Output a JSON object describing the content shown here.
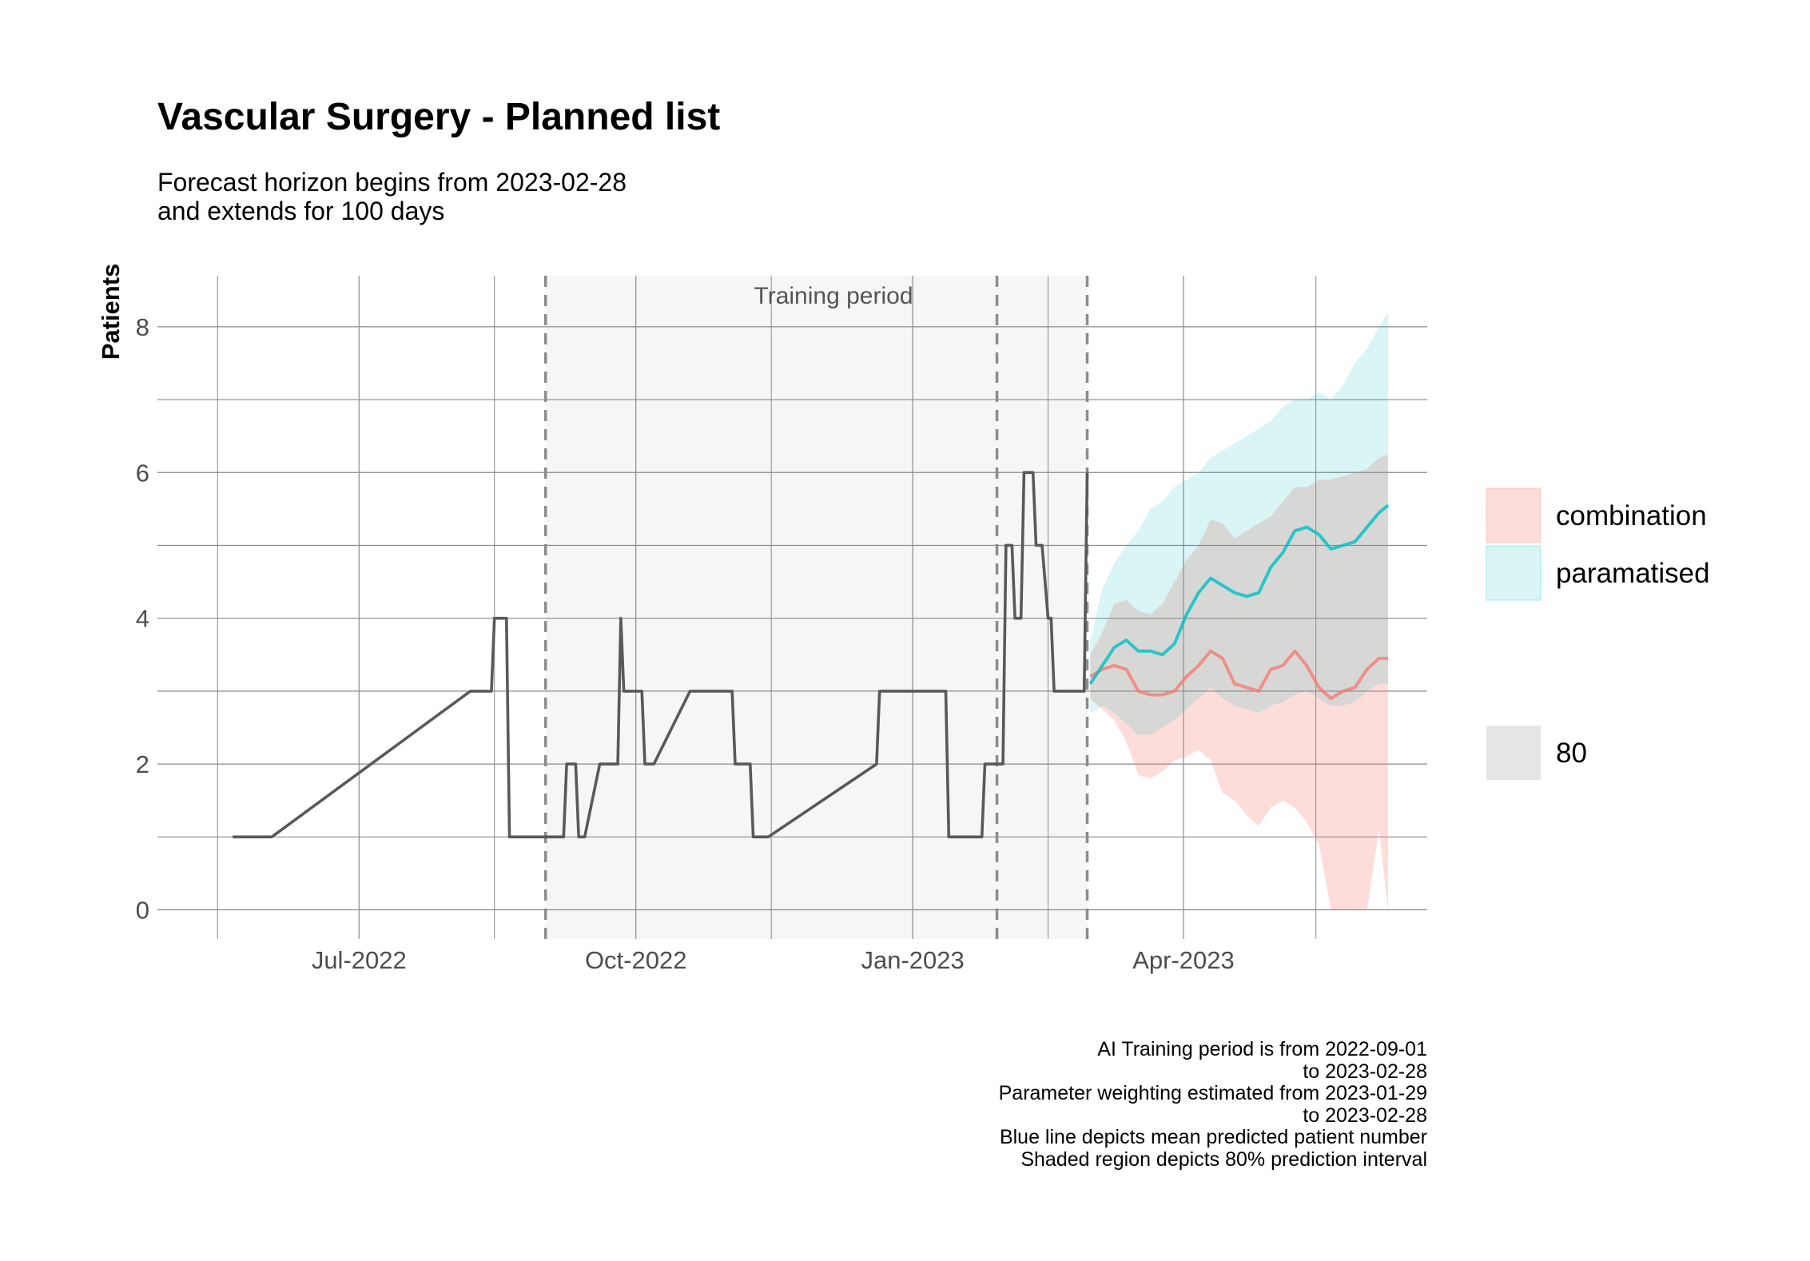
{
  "chart_data": {
    "type": "line",
    "title": "Vascular Surgery - Planned list",
    "subtitle": [
      "Forecast horizon begins from 2023-02-28",
      "and extends for 100 days"
    ],
    "ylabel": "Patients",
    "xlabel": "",
    "ylim": [
      -0.4,
      8.7
    ],
    "xlim": [
      "2022-04-25",
      "2023-06-21"
    ],
    "y_ticks": [
      0,
      2,
      4,
      6,
      8
    ],
    "x_ticks": [
      {
        "date": "2022-07-01",
        "label": "Jul-2022"
      },
      {
        "date": "2022-10-01",
        "label": "Oct-2022"
      },
      {
        "date": "2023-01-01",
        "label": "Jan-2023"
      },
      {
        "date": "2023-04-01",
        "label": "Apr-2023"
      }
    ],
    "x_minor_ticks": [
      "2022-05-15",
      "2022-08-15",
      "2022-11-15",
      "2023-02-15",
      "2023-05-15"
    ],
    "grid": true,
    "training_period": {
      "start": "2022-09-01",
      "end": "2023-02-28",
      "label": "Training period"
    },
    "vlines": [
      "2022-09-01",
      "2023-01-29",
      "2023-02-28"
    ],
    "legend_position": "right",
    "history": {
      "x": [
        "2022-05-20",
        "2022-06-02",
        "2022-08-07",
        "2022-08-14",
        "2022-08-15",
        "2022-08-19",
        "2022-08-20",
        "2022-08-27",
        "2022-09-01",
        "2022-09-07",
        "2022-09-08",
        "2022-09-11",
        "2022-09-12",
        "2022-09-14",
        "2022-09-19",
        "2022-09-25",
        "2022-09-26",
        "2022-09-27",
        "2022-10-03",
        "2022-10-04",
        "2022-10-07",
        "2022-10-19",
        "2022-10-20",
        "2022-11-02",
        "2022-11-03",
        "2022-11-08",
        "2022-11-09",
        "2022-11-14",
        "2022-12-20",
        "2022-12-21",
        "2023-01-12",
        "2023-01-13",
        "2023-01-24",
        "2023-01-25",
        "2023-01-31",
        "2023-02-01",
        "2023-02-03",
        "2023-02-04",
        "2023-02-06",
        "2023-02-07",
        "2023-02-10",
        "2023-02-11",
        "2023-02-13",
        "2023-02-15",
        "2023-02-16",
        "2023-02-17",
        "2023-02-27",
        "2023-02-28"
      ],
      "y": [
        1,
        1,
        3,
        3,
        4,
        4,
        1,
        1,
        1,
        1,
        2,
        2,
        1,
        1,
        2,
        2,
        4,
        3,
        3,
        2,
        2,
        3,
        3,
        3,
        2,
        2,
        1,
        1,
        2,
        3,
        3,
        1,
        1,
        2,
        2,
        5,
        5,
        4,
        4,
        6,
        6,
        5,
        5,
        4,
        4,
        3,
        3,
        6
      ]
    },
    "series": [
      {
        "name": "combination",
        "color": "#F8766D",
        "x": [
          "2023-03-01",
          "2023-03-05",
          "2023-03-09",
          "2023-03-13",
          "2023-03-17",
          "2023-03-21",
          "2023-03-25",
          "2023-03-29",
          "2023-04-02",
          "2023-04-06",
          "2023-04-10",
          "2023-04-14",
          "2023-04-18",
          "2023-04-22",
          "2023-04-26",
          "2023-04-30",
          "2023-05-04",
          "2023-05-08",
          "2023-05-12",
          "2023-05-16",
          "2023-05-20",
          "2023-05-24",
          "2023-05-28",
          "2023-06-01",
          "2023-06-05",
          "2023-06-08"
        ],
        "mean": [
          3.2,
          3.3,
          3.35,
          3.3,
          3.0,
          2.95,
          2.95,
          3.0,
          3.2,
          3.35,
          3.55,
          3.45,
          3.1,
          3.05,
          3.0,
          3.3,
          3.35,
          3.55,
          3.35,
          3.05,
          2.9,
          3.0,
          3.05,
          3.3,
          3.45,
          3.45
        ],
        "lower": [
          2.9,
          2.75,
          2.6,
          2.3,
          1.85,
          1.8,
          1.9,
          2.05,
          2.1,
          2.2,
          2.05,
          1.6,
          1.5,
          1.3,
          1.15,
          1.4,
          1.5,
          1.4,
          1.2,
          0.9,
          0.0,
          0.0,
          0.0,
          0.0,
          1.1,
          0.0
        ],
        "upper": [
          3.5,
          3.8,
          4.2,
          4.25,
          4.1,
          4.05,
          4.2,
          4.5,
          4.8,
          5.0,
          5.35,
          5.3,
          5.1,
          5.2,
          5.3,
          5.4,
          5.6,
          5.8,
          5.8,
          5.9,
          5.9,
          5.95,
          6.0,
          6.05,
          6.2,
          6.25
        ]
      },
      {
        "name": "paramatised",
        "color": "#00BFC4",
        "x": [
          "2023-03-01",
          "2023-03-05",
          "2023-03-09",
          "2023-03-13",
          "2023-03-17",
          "2023-03-21",
          "2023-03-25",
          "2023-03-29",
          "2023-04-02",
          "2023-04-06",
          "2023-04-10",
          "2023-04-14",
          "2023-04-18",
          "2023-04-22",
          "2023-04-26",
          "2023-04-30",
          "2023-05-04",
          "2023-05-08",
          "2023-05-12",
          "2023-05-16",
          "2023-05-20",
          "2023-05-24",
          "2023-05-28",
          "2023-06-01",
          "2023-06-05",
          "2023-06-08"
        ],
        "mean": [
          3.1,
          3.35,
          3.6,
          3.7,
          3.55,
          3.55,
          3.5,
          3.65,
          4.05,
          4.35,
          4.55,
          4.45,
          4.35,
          4.3,
          4.35,
          4.7,
          4.9,
          5.2,
          5.25,
          5.15,
          4.95,
          5.0,
          5.05,
          5.25,
          5.45,
          5.55
        ],
        "lower": [
          2.7,
          2.8,
          2.7,
          2.55,
          2.4,
          2.4,
          2.5,
          2.6,
          2.75,
          2.9,
          3.05,
          2.9,
          2.8,
          2.75,
          2.7,
          2.8,
          2.85,
          2.95,
          3.0,
          2.9,
          2.8,
          2.8,
          2.85,
          3.0,
          3.1,
          3.1
        ],
        "upper": [
          3.7,
          4.4,
          4.75,
          5.0,
          5.2,
          5.5,
          5.6,
          5.8,
          5.9,
          6.0,
          6.2,
          6.3,
          6.4,
          6.5,
          6.6,
          6.7,
          6.9,
          7.0,
          7.0,
          7.1,
          7.0,
          7.2,
          7.5,
          7.7,
          8.0,
          8.2
        ]
      }
    ],
    "legend": {
      "items": [
        {
          "label": "combination",
          "color": "#F8766D"
        },
        {
          "label": "paramatised",
          "color": "#00BFC4"
        }
      ],
      "level_label": "80"
    },
    "caption": [
      "AI Training period is from 2022-09-01",
      "to 2023-02-28",
      "Parameter weighting estimated from 2023-01-29",
      "to 2023-02-28",
      "Blue line depicts mean predicted patient number",
      "Shaded region depicts 80% prediction interval"
    ]
  }
}
